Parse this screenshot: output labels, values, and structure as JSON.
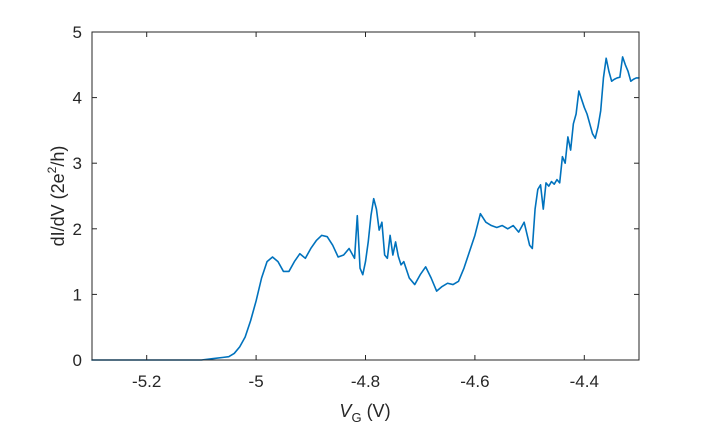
{
  "chart_data": {
    "type": "line",
    "xlabel_main": "V",
    "xlabel_sub": "G",
    "xlabel_unit": " (V)",
    "ylabel_main": "dI/dV (2e",
    "ylabel_sup": "2",
    "ylabel_end": "/h)",
    "xlim": [
      -5.3,
      -4.3
    ],
    "ylim": [
      0,
      5
    ],
    "xticks": [
      -5.2,
      -5.0,
      -4.8,
      -4.6,
      -4.4
    ],
    "xtick_labels": [
      "-5.2",
      "-5",
      "-4.8",
      "-4.6",
      "-4.4"
    ],
    "yticks": [
      0,
      1,
      2,
      3,
      4,
      5
    ],
    "ytick_labels": [
      "0",
      "1",
      "2",
      "3",
      "4",
      "5"
    ],
    "line_color": "#0072bd",
    "series": [
      {
        "x": [
          -5.3,
          -5.1,
          -5.08,
          -5.06,
          -5.05,
          -5.04,
          -5.03,
          -5.02,
          -5.01,
          -5.0,
          -4.99,
          -4.98,
          -4.97,
          -4.96,
          -4.95,
          -4.94,
          -4.93,
          -4.92,
          -4.91,
          -4.9,
          -4.89,
          -4.88,
          -4.87,
          -4.86,
          -4.85,
          -4.84,
          -4.83,
          -4.82,
          -4.815,
          -4.81,
          -4.805,
          -4.8,
          -4.795,
          -4.79,
          -4.785,
          -4.78,
          -4.775,
          -4.77,
          -4.765,
          -4.76,
          -4.755,
          -4.75,
          -4.745,
          -4.74,
          -4.735,
          -4.73,
          -4.72,
          -4.71,
          -4.7,
          -4.69,
          -4.68,
          -4.67,
          -4.66,
          -4.65,
          -4.64,
          -4.63,
          -4.62,
          -4.61,
          -4.6,
          -4.59,
          -4.58,
          -4.57,
          -4.56,
          -4.55,
          -4.54,
          -4.53,
          -4.52,
          -4.51,
          -4.5,
          -4.495,
          -4.49,
          -4.485,
          -4.48,
          -4.475,
          -4.47,
          -4.465,
          -4.46,
          -4.455,
          -4.45,
          -4.445,
          -4.44,
          -4.435,
          -4.43,
          -4.425,
          -4.42,
          -4.415,
          -4.41,
          -4.4,
          -4.395,
          -4.39,
          -4.385,
          -4.38,
          -4.375,
          -4.37,
          -4.365,
          -4.36,
          -4.355,
          -4.35,
          -4.345,
          -4.34,
          -4.335,
          -4.33,
          -4.325,
          -4.32,
          -4.315,
          -4.31,
          -4.305,
          -4.3
        ],
        "y": [
          0.0,
          0.0,
          0.02,
          0.04,
          0.05,
          0.1,
          0.2,
          0.35,
          0.6,
          0.9,
          1.25,
          1.5,
          1.57,
          1.5,
          1.35,
          1.35,
          1.5,
          1.62,
          1.55,
          1.7,
          1.82,
          1.9,
          1.88,
          1.75,
          1.57,
          1.6,
          1.7,
          1.55,
          2.2,
          1.4,
          1.3,
          1.5,
          1.8,
          2.2,
          2.46,
          2.3,
          1.98,
          2.1,
          1.6,
          1.55,
          1.9,
          1.6,
          1.8,
          1.58,
          1.45,
          1.5,
          1.25,
          1.15,
          1.3,
          1.42,
          1.25,
          1.05,
          1.12,
          1.17,
          1.15,
          1.2,
          1.4,
          1.65,
          1.9,
          2.23,
          2.1,
          2.05,
          2.02,
          2.05,
          2.0,
          2.05,
          1.95,
          2.1,
          1.75,
          1.7,
          2.3,
          2.6,
          2.67,
          2.3,
          2.7,
          2.65,
          2.72,
          2.68,
          2.75,
          2.7,
          3.1,
          3.0,
          3.4,
          3.2,
          3.6,
          3.75,
          4.1,
          3.85,
          3.75,
          3.6,
          3.45,
          3.38,
          3.55,
          3.8,
          4.3,
          4.6,
          4.4,
          4.25,
          4.28,
          4.3,
          4.31,
          4.62,
          4.5,
          4.4,
          4.25,
          4.28,
          4.3,
          4.3
        ]
      }
    ]
  }
}
